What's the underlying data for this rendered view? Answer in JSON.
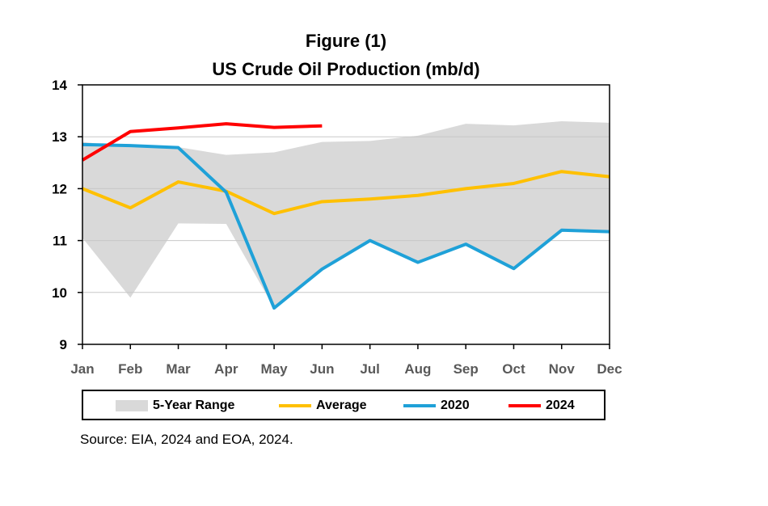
{
  "chart_data": {
    "type": "line",
    "title_line1": "Figure (1)",
    "title_line2": "US Crude Oil Production (mb/d)",
    "categories": [
      "Jan",
      "Feb",
      "Mar",
      "Apr",
      "May",
      "Jun",
      "Jul",
      "Aug",
      "Sep",
      "Oct",
      "Nov",
      "Dec"
    ],
    "ylim": [
      9,
      14
    ],
    "yticks": [
      9,
      10,
      11,
      12,
      13,
      14
    ],
    "grid": true,
    "legend_position": "bottom",
    "band": {
      "name": "5-Year Range",
      "color": "#d9d9d9",
      "high": [
        12.9,
        12.8,
        12.8,
        12.65,
        12.7,
        12.9,
        12.92,
        13.02,
        13.25,
        13.22,
        13.3,
        13.27
      ],
      "low": [
        11.05,
        9.9,
        11.33,
        11.32,
        9.7,
        10.45,
        11.0,
        10.58,
        10.93,
        10.46,
        11.2,
        11.17
      ]
    },
    "series": [
      {
        "name": "Average",
        "color": "#ffc000",
        "values": [
          12.0,
          11.63,
          12.13,
          11.95,
          11.52,
          11.75,
          11.8,
          11.87,
          12.0,
          12.1,
          12.33,
          12.23
        ]
      },
      {
        "name": "2020",
        "color": "#1fa1d8",
        "values": [
          12.85,
          12.83,
          12.79,
          11.93,
          9.7,
          10.45,
          11.0,
          10.58,
          10.93,
          10.46,
          11.2,
          11.17
        ]
      },
      {
        "name": "2024",
        "color": "#ff0000",
        "values": [
          12.55,
          13.1,
          13.17,
          13.25,
          13.18,
          13.21,
          null,
          null,
          null,
          null,
          null,
          null
        ]
      }
    ],
    "source": "Source: EIA, 2024 and EOA, 2024."
  }
}
